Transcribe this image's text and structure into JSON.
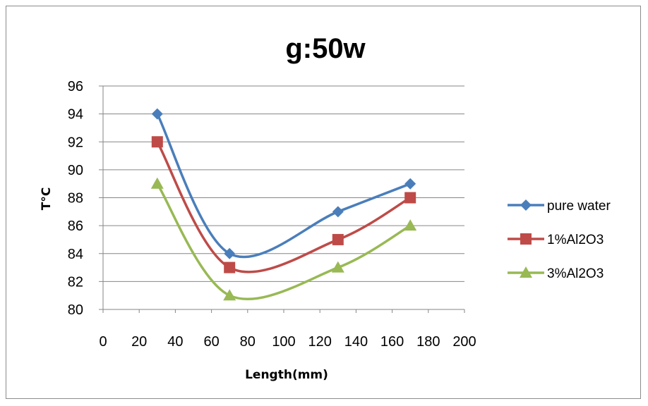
{
  "chart_data": {
    "type": "line",
    "title": "g:50w",
    "xlabel": "Length(mm)",
    "ylabel": "T°C",
    "xlim": [
      0,
      200
    ],
    "ylim": [
      80,
      96
    ],
    "x_ticks": [
      "0",
      "20",
      "40",
      "60",
      "80",
      "100",
      "120",
      "140",
      "160",
      "180",
      "200"
    ],
    "y_ticks": [
      "96",
      "94",
      "92",
      "90",
      "88",
      "86",
      "84",
      "82",
      "80"
    ],
    "smooth": true,
    "grid": "horizontal",
    "legend_position": "right",
    "x": [
      30,
      70,
      130,
      170
    ],
    "series": [
      {
        "name": "pure water",
        "values": [
          94,
          84,
          87,
          89
        ],
        "color": "#4a7ebb",
        "marker": "diamond"
      },
      {
        "name": "1%Al2O3",
        "values": [
          92,
          83,
          85,
          88
        ],
        "color": "#be4b48",
        "marker": "square"
      },
      {
        "name": "3%Al2O3",
        "values": [
          89,
          81,
          83,
          86
        ],
        "color": "#98b954",
        "marker": "triangle"
      }
    ]
  }
}
